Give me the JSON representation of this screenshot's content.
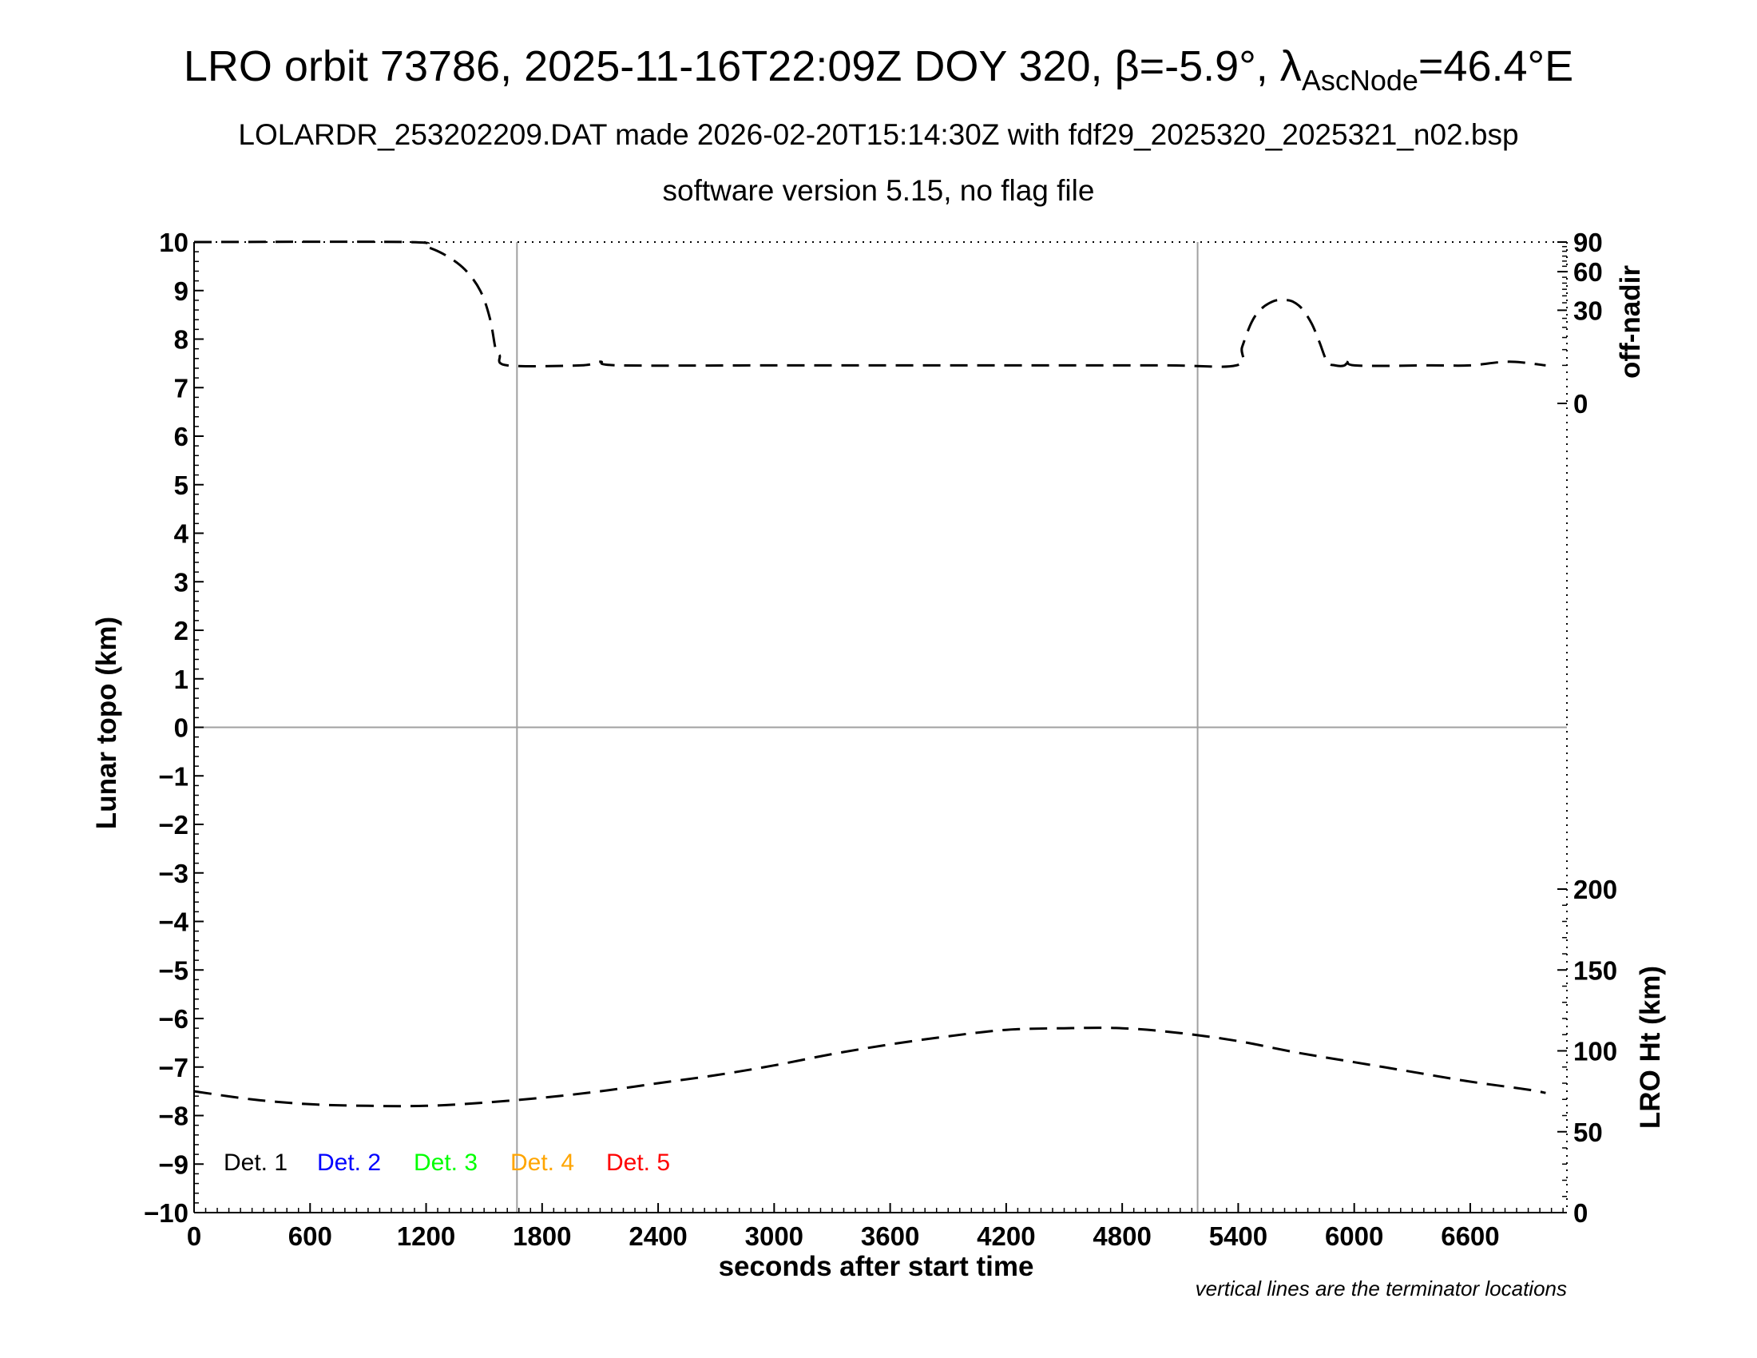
{
  "title": {
    "prefix": "LRO orbit 73786, 2025-11-16T22:09Z DOY 320, β=-5.9°, λ",
    "sub": "AscNode",
    "suffix": "=46.4°E"
  },
  "subtitle1": "LOLARDR_253202209.DAT made 2026-02-20T15:14:30Z with fdf29_2025320_2025321_n02.bsp",
  "subtitle2": "software version 5.15, no flag file",
  "chart_data": {
    "type": "line",
    "title": "LRO orbit 73786, 2025-11-16T22:09Z DOY 320, β=-5.9°, λAscNode=46.4°E",
    "xlabel": "seconds after start time",
    "ylabel": "Lunar topo (km)",
    "y2label_top": "off-nadir",
    "y2label_bottom": "LRO Ht (km)",
    "xlim": [
      0,
      7100
    ],
    "ylim": [
      -10,
      10
    ],
    "x_ticks": [
      0,
      600,
      1200,
      1800,
      2400,
      3000,
      3600,
      4200,
      4800,
      5400,
      6000,
      6600
    ],
    "y_ticks": [
      -10,
      -9,
      -8,
      -7,
      -6,
      -5,
      -4,
      -3,
      -2,
      -1,
      0,
      1,
      2,
      3,
      4,
      5,
      6,
      7,
      8,
      9,
      10
    ],
    "y_tick_labels": [
      "−10",
      "−9",
      "−8",
      "−7",
      "−6",
      "−5",
      "−4",
      "−3",
      "−2",
      "−1",
      "0",
      "1",
      "2",
      "3",
      "4",
      "5",
      "6",
      "7",
      "8",
      "9",
      "10"
    ],
    "off_nadir_ticks": [
      0,
      30,
      60,
      90
    ],
    "lro_ht_ticks": [
      0,
      50,
      100,
      150,
      200
    ],
    "terminator_x": [
      1670,
      5190
    ],
    "grid": false,
    "legend": {
      "placement": "bottom-left",
      "entries": [
        {
          "label": "Det. 1",
          "color": "#000000"
        },
        {
          "label": "Det. 2",
          "color": "#0000ff"
        },
        {
          "label": "Det. 3",
          "color": "#00ff00"
        },
        {
          "label": "Det. 4",
          "color": "#ffa500"
        },
        {
          "label": "Det. 5",
          "color": "#ff0000"
        }
      ]
    },
    "series": [
      {
        "axis": "off-nadir",
        "style": "dashed",
        "x": [
          0,
          1100,
          1200,
          1300,
          1400,
          1480,
          1530,
          1560,
          1580,
          1620,
          2000,
          2100,
          2200,
          3000,
          4000,
          5000,
          5390,
          5420,
          5470,
          5520,
          5580,
          5630,
          5680,
          5730,
          5780,
          5820,
          5860,
          5900,
          5950,
          5980,
          6000,
          6400,
          6600,
          6800,
          6990
        ],
        "y": [
          90,
          90,
          85,
          76,
          62,
          44,
          25,
          10,
          8,
          5,
          5,
          6,
          5,
          5,
          5,
          5,
          5,
          11,
          23,
          31,
          36,
          37,
          36,
          31,
          22,
          13,
          6,
          5,
          5,
          7,
          5,
          5,
          5,
          6,
          5
        ]
      },
      {
        "axis": "LRO Ht (km)",
        "style": "dashed",
        "x": [
          0,
          300,
          600,
          900,
          1200,
          1500,
          1800,
          2100,
          2400,
          2700,
          3000,
          3300,
          3600,
          3900,
          4200,
          4500,
          4800,
          5100,
          5400,
          5700,
          6000,
          6300,
          6600,
          6900,
          6990
        ],
        "y": [
          75,
          70,
          67,
          66,
          66,
          68,
          71,
          75,
          80,
          85,
          91,
          98,
          104,
          109,
          113,
          114,
          114,
          111,
          106,
          99,
          93,
          87,
          81,
          76,
          74
        ]
      }
    ],
    "note": "vertical lines are the terminator locations"
  }
}
